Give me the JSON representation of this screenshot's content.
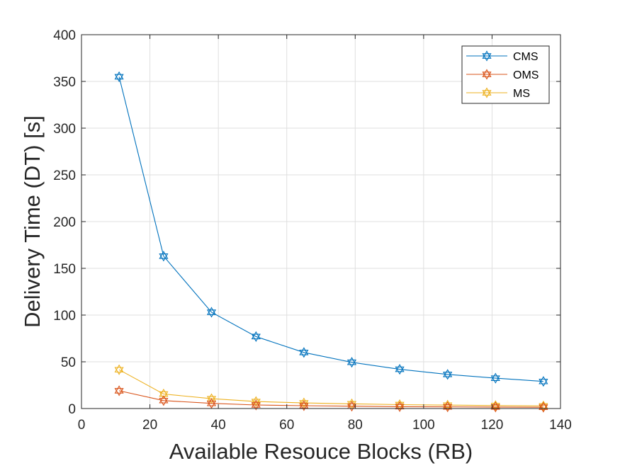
{
  "chart_data": {
    "type": "line",
    "title": "",
    "xlabel": "Available Resouce Blocks (RB)",
    "ylabel": "Delivery Time (DT) [s]",
    "xlim": [
      0,
      140
    ],
    "ylim": [
      0,
      400
    ],
    "xticks": [
      0,
      20,
      40,
      60,
      80,
      100,
      120,
      140
    ],
    "yticks": [
      0,
      50,
      100,
      150,
      200,
      250,
      300,
      350,
      400
    ],
    "grid": true,
    "legend_position": "top-right",
    "marker": "hexagram",
    "x": [
      11,
      24,
      38,
      51,
      65,
      79,
      93,
      107,
      121,
      135
    ],
    "series": [
      {
        "name": "CMS",
        "color": "#0072BD",
        "values": [
          355,
          163,
          103,
          77,
          60,
          49.5,
          42,
          36.5,
          32.5,
          29
        ]
      },
      {
        "name": "OMS",
        "color": "#D95319",
        "values": [
          19,
          8.5,
          5.5,
          3.8,
          3.0,
          2.5,
          2.0,
          1.8,
          1.6,
          1.4
        ]
      },
      {
        "name": "MS",
        "color": "#EDB120",
        "values": [
          41.5,
          15.5,
          10.5,
          7.5,
          6.0,
          5.0,
          4.2,
          3.6,
          3.2,
          2.8
        ]
      }
    ]
  }
}
